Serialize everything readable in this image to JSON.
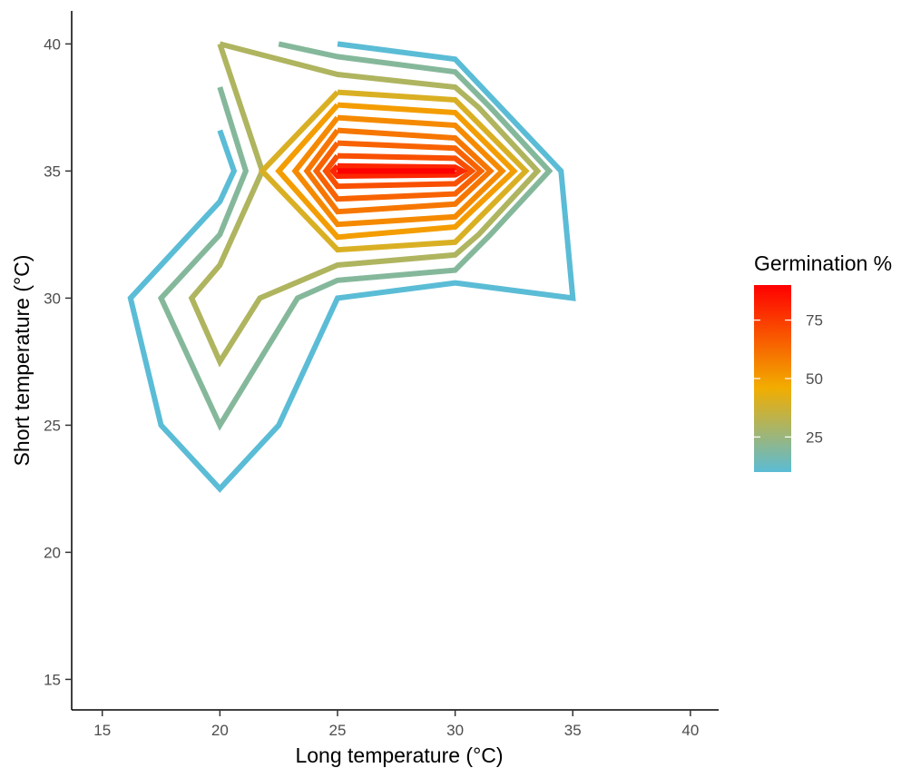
{
  "chart_data": {
    "type": "contour",
    "title": "",
    "xlabel": "Long temperature (°C)",
    "ylabel": "Short temperature (°C)",
    "xlim": [
      13.7,
      41.2
    ],
    "ylim": [
      13.8,
      41.3
    ],
    "x_ticks": [
      "15",
      "20",
      "25",
      "30",
      "35",
      "40"
    ],
    "y_ticks": [
      "15",
      "20",
      "25",
      "30",
      "35",
      "40"
    ],
    "grid": false,
    "legend": {
      "title": "Germination %",
      "placement": "right",
      "ticks": [
        "75",
        "50",
        "25"
      ],
      "tick_values": [
        75,
        50,
        25
      ],
      "range": [
        10,
        90
      ],
      "low_color": "#5bbcd6",
      "mid_color": "#f2ad00",
      "high_color": "#ff0000"
    },
    "contours": [
      {
        "level": 10,
        "segments": [
          [
            [
              25,
              40
            ],
            [
              30,
              39.4
            ],
            [
              34.5,
              35
            ],
            [
              35,
              30
            ],
            [
              30,
              30.6
            ],
            [
              25,
              30
            ],
            [
              22.5,
              25
            ],
            [
              20,
              22.5
            ],
            [
              17.5,
              25
            ],
            [
              16.2,
              30
            ],
            [
              20,
              33.8
            ],
            [
              20.6,
              35
            ],
            [
              20,
              36.6
            ]
          ]
        ]
      },
      {
        "level": 20,
        "segments": [
          [
            [
              22.5,
              40
            ],
            [
              25,
              39.5
            ],
            [
              30,
              38.9
            ],
            [
              31.5,
              37.5
            ],
            [
              34,
              35
            ],
            [
              31.5,
              32.5
            ],
            [
              30,
              31.1
            ],
            [
              25,
              30.7
            ],
            [
              23.3,
              30
            ],
            [
              20,
              25
            ],
            [
              17.5,
              30
            ],
            [
              20,
              32.5
            ],
            [
              21.1,
              35
            ],
            [
              20,
              38.3
            ]
          ]
        ]
      },
      {
        "level": 30,
        "segments": [
          [
            [
              20,
              40
            ],
            [
              25,
              38.8
            ],
            [
              30,
              38.3
            ],
            [
              31,
              37.5
            ],
            [
              33.5,
              35
            ],
            [
              31,
              32.5
            ],
            [
              30,
              31.7
            ],
            [
              25,
              31.3
            ],
            [
              21.7,
              30
            ],
            [
              20,
              27.5
            ],
            [
              18.8,
              30
            ],
            [
              20,
              31.3
            ],
            [
              21.8,
              35
            ],
            [
              20,
              40
            ]
          ]
        ]
      },
      {
        "level": 40,
        "segments": [
          [
            [
              25,
              38.1
            ],
            [
              30,
              37.8
            ],
            [
              33,
              35
            ],
            [
              30,
              32.2
            ],
            [
              25,
              31.9
            ],
            [
              21.8,
              35
            ],
            [
              25,
              38.1
            ]
          ]
        ]
      },
      {
        "level": 50,
        "segments": [
          [
            [
              25,
              37.6
            ],
            [
              30,
              37.3
            ],
            [
              32.5,
              35
            ],
            [
              30,
              32.8
            ],
            [
              25,
              32.4
            ],
            [
              22.5,
              35
            ],
            [
              25,
              37.6
            ]
          ]
        ]
      },
      {
        "level": 55,
        "segments": [
          [
            [
              25,
              37.1
            ],
            [
              30,
              36.8
            ],
            [
              32,
              35
            ],
            [
              30,
              33.2
            ],
            [
              25,
              32.9
            ],
            [
              23.2,
              35
            ],
            [
              25,
              37.1
            ]
          ]
        ]
      },
      {
        "level": 60,
        "segments": [
          [
            [
              25,
              36.6
            ],
            [
              30,
              36.3
            ],
            [
              31.5,
              35
            ],
            [
              30,
              33.7
            ],
            [
              25,
              33.4
            ],
            [
              23.7,
              35
            ],
            [
              25,
              36.6
            ]
          ]
        ]
      },
      {
        "level": 65,
        "segments": [
          [
            [
              25,
              36.1
            ],
            [
              30,
              35.9
            ],
            [
              31.1,
              35
            ],
            [
              30,
              34.1
            ],
            [
              25,
              33.9
            ],
            [
              24.1,
              35
            ],
            [
              25,
              36.1
            ]
          ]
        ]
      },
      {
        "level": 70,
        "segments": [
          [
            [
              25,
              35.6
            ],
            [
              30,
              35.5
            ],
            [
              30.7,
              35
            ],
            [
              30,
              34.5
            ],
            [
              25,
              34.4
            ],
            [
              24.5,
              35
            ],
            [
              25,
              35.6
            ]
          ]
        ]
      },
      {
        "level": 80,
        "segments": [
          [
            [
              25,
              35.2
            ],
            [
              30,
              35.15
            ],
            [
              30.3,
              35
            ],
            [
              30,
              34.85
            ],
            [
              25,
              34.8
            ],
            [
              24.8,
              35
            ],
            [
              25,
              35.2
            ]
          ]
        ]
      },
      {
        "level": 90,
        "segments": [
          [
            [
              25,
              35
            ],
            [
              30,
              35
            ]
          ]
        ]
      }
    ]
  }
}
